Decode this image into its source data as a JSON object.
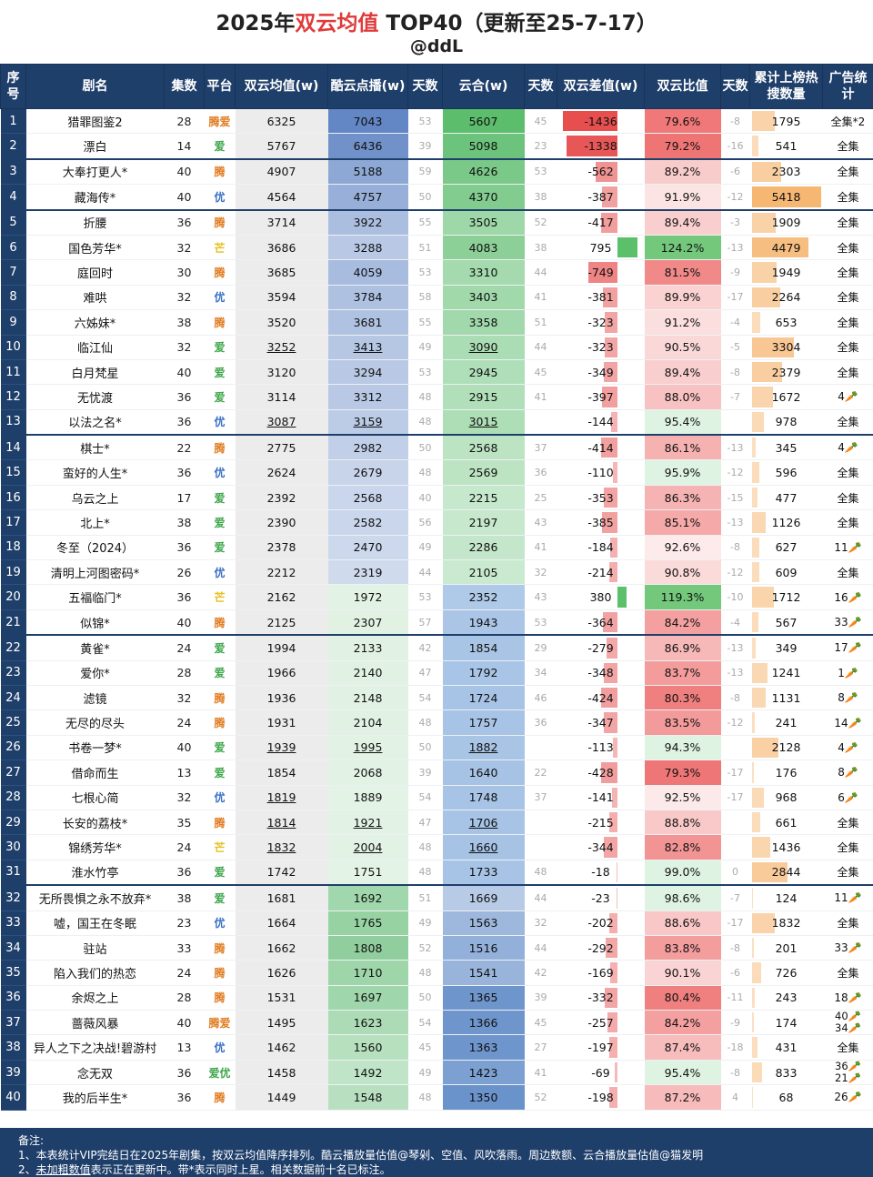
{
  "title_year": "2025年",
  "title_red": "双云均值",
  "title_rest": " TOP40（更新至25-7-17）",
  "subtitle": "@ddL",
  "headers": {
    "seq": "序号",
    "name": "剧名",
    "episodes": "集数",
    "platform": "平台",
    "avg": "双云均值(w)",
    "youku": "酷云点播(w)",
    "days1": "天数",
    "yunhe": "云合(w)",
    "days2": "天数",
    "diff": "双云差值(w)",
    "ratio": "双云比值",
    "days3": "天数",
    "hot": "累计上榜热搜数量",
    "ad": "广告统计"
  },
  "rows": [
    {
      "seq": "1",
      "name": "猎罪图鉴2",
      "ep": "28",
      "plat": "腾爱",
      "avg": "6325",
      "yk": "7043",
      "d1": "53",
      "yh": "5607",
      "d2": "45",
      "diff": "-1436",
      "ratio": "79.6%",
      "d3": "-8",
      "hot": "1795",
      "ad": "全集*2",
      "hotv": 1795,
      "ykv": 7043,
      "yhv": 5607,
      "diffv": -1436,
      "ratiov": 79.6
    },
    {
      "seq": "2",
      "name": "漂白",
      "ep": "14",
      "plat": "爱",
      "avg": "5767",
      "yk": "6436",
      "d1": "39",
      "yh": "5098",
      "d2": "23",
      "diff": "-1338",
      "ratio": "79.2%",
      "d3": "-16",
      "hot": "541",
      "ad": "全集",
      "hotv": 541,
      "ykv": 6436,
      "yhv": 5098,
      "diffv": -1338,
      "ratiov": 79.2
    },
    {
      "seq": "3",
      "name": "大奉打更人*",
      "ep": "40",
      "plat": "腾",
      "avg": "4907",
      "yk": "5188",
      "d1": "59",
      "yh": "4626",
      "d2": "53",
      "diff": "-562",
      "ratio": "89.2%",
      "d3": "-6",
      "hot": "2303",
      "ad": "全集",
      "hotv": 2303,
      "ykv": 5188,
      "yhv": 4626,
      "diffv": -562,
      "ratiov": 89.2
    },
    {
      "seq": "4",
      "name": "藏海传*",
      "ep": "40",
      "plat": "优",
      "avg": "4564",
      "yk": "4757",
      "d1": "50",
      "yh": "4370",
      "d2": "38",
      "diff": "-387",
      "ratio": "91.9%",
      "d3": "-12",
      "hot": "5418",
      "ad": "全集",
      "hotv": 5418,
      "ykv": 4757,
      "yhv": 4370,
      "diffv": -387,
      "ratiov": 91.9
    },
    {
      "seq": "5",
      "name": "折腰",
      "ep": "36",
      "plat": "腾",
      "avg": "3714",
      "yk": "3922",
      "d1": "55",
      "yh": "3505",
      "d2": "52",
      "diff": "-417",
      "ratio": "89.4%",
      "d3": "-3",
      "hot": "1909",
      "ad": "全集",
      "hotv": 1909,
      "ykv": 3922,
      "yhv": 3505,
      "diffv": -417,
      "ratiov": 89.4
    },
    {
      "seq": "6",
      "name": "国色芳华*",
      "ep": "32",
      "plat": "芒",
      "avg": "3686",
      "yk": "3288",
      "d1": "51",
      "yh": "4083",
      "d2": "38",
      "diff": "795",
      "ratio": "124.2%",
      "d3": "-13",
      "hot": "4479",
      "ad": "全集",
      "hotv": 4479,
      "ykv": 3288,
      "yhv": 4083,
      "diffv": 795,
      "ratiov": 124.2
    },
    {
      "seq": "7",
      "name": "庭回时",
      "ep": "30",
      "plat": "腾",
      "avg": "3685",
      "yk": "4059",
      "d1": "53",
      "yh": "3310",
      "d2": "44",
      "diff": "-749",
      "ratio": "81.5%",
      "d3": "-9",
      "hot": "1949",
      "ad": "全集",
      "hotv": 1949,
      "ykv": 4059,
      "yhv": 3310,
      "diffv": -749,
      "ratiov": 81.5
    },
    {
      "seq": "8",
      "name": "难哄",
      "ep": "32",
      "plat": "优",
      "avg": "3594",
      "yk": "3784",
      "d1": "58",
      "yh": "3403",
      "d2": "41",
      "diff": "-381",
      "ratio": "89.9%",
      "d3": "-17",
      "hot": "2264",
      "ad": "全集",
      "hotv": 2264,
      "ykv": 3784,
      "yhv": 3403,
      "diffv": -381,
      "ratiov": 89.9
    },
    {
      "seq": "9",
      "name": "六姊妹*",
      "ep": "38",
      "plat": "腾",
      "avg": "3520",
      "yk": "3681",
      "d1": "55",
      "yh": "3358",
      "d2": "51",
      "diff": "-323",
      "ratio": "91.2%",
      "d3": "-4",
      "hot": "653",
      "ad": "全集",
      "hotv": 653,
      "ykv": 3681,
      "yhv": 3358,
      "diffv": -323,
      "ratiov": 91.2
    },
    {
      "seq": "10",
      "name": "临江仙",
      "ep": "32",
      "plat": "爱",
      "avg": "3252",
      "yk": "3413",
      "d1": "49",
      "yh": "3090",
      "d2": "44",
      "diff": "-323",
      "ratio": "90.5%",
      "d3": "-5",
      "hot": "3304",
      "ad": "全集",
      "hotv": 3304,
      "ykv": 3413,
      "yhv": 3090,
      "diffv": -323,
      "ratiov": 90.5,
      "u": true
    },
    {
      "seq": "11",
      "name": "白月梵星",
      "ep": "40",
      "plat": "爱",
      "avg": "3120",
      "yk": "3294",
      "d1": "53",
      "yh": "2945",
      "d2": "45",
      "diff": "-349",
      "ratio": "89.4%",
      "d3": "-8",
      "hot": "2379",
      "ad": "全集",
      "hotv": 2379,
      "ykv": 3294,
      "yhv": 2945,
      "diffv": -349,
      "ratiov": 89.4
    },
    {
      "seq": "12",
      "name": "无忧渡",
      "ep": "36",
      "plat": "爱",
      "avg": "3114",
      "yk": "3312",
      "d1": "48",
      "yh": "2915",
      "d2": "41",
      "diff": "-397",
      "ratio": "88.0%",
      "d3": "-7",
      "hot": "1672",
      "ad": "4🥕",
      "hotv": 1672,
      "ykv": 3312,
      "yhv": 2915,
      "diffv": -397,
      "ratiov": 88.0
    },
    {
      "seq": "13",
      "name": "以法之名*",
      "ep": "36",
      "plat": "优",
      "avg": "3087",
      "yk": "3159",
      "d1": "48",
      "yh": "3015",
      "d2": "",
      "diff": "-144",
      "ratio": "95.4%",
      "d3": "",
      "hot": "978",
      "ad": "全集",
      "hotv": 978,
      "ykv": 3159,
      "yhv": 3015,
      "diffv": -144,
      "ratiov": 95.4,
      "u": true
    },
    {
      "seq": "14",
      "name": "棋士*",
      "ep": "22",
      "plat": "腾",
      "avg": "2775",
      "yk": "2982",
      "d1": "50",
      "yh": "2568",
      "d2": "37",
      "diff": "-414",
      "ratio": "86.1%",
      "d3": "-13",
      "hot": "345",
      "ad": "4🥕",
      "hotv": 345,
      "ykv": 2982,
      "yhv": 2568,
      "diffv": -414,
      "ratiov": 86.1
    },
    {
      "seq": "15",
      "name": "蛮好的人生*",
      "ep": "36",
      "plat": "优",
      "avg": "2624",
      "yk": "2679",
      "d1": "48",
      "yh": "2569",
      "d2": "36",
      "diff": "-110",
      "ratio": "95.9%",
      "d3": "-12",
      "hot": "596",
      "ad": "全集",
      "hotv": 596,
      "ykv": 2679,
      "yhv": 2569,
      "diffv": -110,
      "ratiov": 95.9
    },
    {
      "seq": "16",
      "name": "乌云之上",
      "ep": "17",
      "plat": "爱",
      "avg": "2392",
      "yk": "2568",
      "d1": "40",
      "yh": "2215",
      "d2": "25",
      "diff": "-353",
      "ratio": "86.3%",
      "d3": "-15",
      "hot": "477",
      "ad": "全集",
      "hotv": 477,
      "ykv": 2568,
      "yhv": 2215,
      "diffv": -353,
      "ratiov": 86.3
    },
    {
      "seq": "17",
      "name": "北上*",
      "ep": "38",
      "plat": "爱",
      "avg": "2390",
      "yk": "2582",
      "d1": "56",
      "yh": "2197",
      "d2": "43",
      "diff": "-385",
      "ratio": "85.1%",
      "d3": "-13",
      "hot": "1126",
      "ad": "全集",
      "hotv": 1126,
      "ykv": 2582,
      "yhv": 2197,
      "diffv": -385,
      "ratiov": 85.1
    },
    {
      "seq": "18",
      "name": "冬至（2024）",
      "ep": "36",
      "plat": "爱",
      "avg": "2378",
      "yk": "2470",
      "d1": "49",
      "yh": "2286",
      "d2": "41",
      "diff": "-184",
      "ratio": "92.6%",
      "d3": "-8",
      "hot": "627",
      "ad": "11🥕",
      "hotv": 627,
      "ykv": 2470,
      "yhv": 2286,
      "diffv": -184,
      "ratiov": 92.6
    },
    {
      "seq": "19",
      "name": "清明上河图密码*",
      "ep": "26",
      "plat": "优",
      "avg": "2212",
      "yk": "2319",
      "d1": "44",
      "yh": "2105",
      "d2": "32",
      "diff": "-214",
      "ratio": "90.8%",
      "d3": "-12",
      "hot": "609",
      "ad": "全集",
      "hotv": 609,
      "ykv": 2319,
      "yhv": 2105,
      "diffv": -214,
      "ratiov": 90.8
    },
    {
      "seq": "20",
      "name": "五福临门*",
      "ep": "36",
      "plat": "芒",
      "avg": "2162",
      "yk": "1972",
      "d1": "53",
      "yh": "2352",
      "d2": "43",
      "diff": "380",
      "ratio": "119.3%",
      "d3": "-10",
      "hot": "1712",
      "ad": "16🥕",
      "hotv": 1712,
      "ykv": 1972,
      "yhv": 2352,
      "diffv": 380,
      "ratiov": 119.3
    },
    {
      "seq": "21",
      "name": "似锦*",
      "ep": "40",
      "plat": "腾",
      "avg": "2125",
      "yk": "2307",
      "d1": "57",
      "yh": "1943",
      "d2": "53",
      "diff": "-364",
      "ratio": "84.2%",
      "d3": "-4",
      "hot": "567",
      "ad": "33🥕",
      "hotv": 567,
      "ykv": 2307,
      "yhv": 1943,
      "diffv": -364,
      "ratiov": 84.2
    },
    {
      "seq": "22",
      "name": "黄雀*",
      "ep": "24",
      "plat": "爱",
      "avg": "1994",
      "yk": "2133",
      "d1": "42",
      "yh": "1854",
      "d2": "29",
      "diff": "-279",
      "ratio": "86.9%",
      "d3": "-13",
      "hot": "349",
      "ad": "17🥕",
      "hotv": 349,
      "ykv": 2133,
      "yhv": 1854,
      "diffv": -279,
      "ratiov": 86.9
    },
    {
      "seq": "23",
      "name": "爱你*",
      "ep": "28",
      "plat": "爱",
      "avg": "1966",
      "yk": "2140",
      "d1": "47",
      "yh": "1792",
      "d2": "34",
      "diff": "-348",
      "ratio": "83.7%",
      "d3": "-13",
      "hot": "1241",
      "ad": "1🥕",
      "hotv": 1241,
      "ykv": 2140,
      "yhv": 1792,
      "diffv": -348,
      "ratiov": 83.7
    },
    {
      "seq": "24",
      "name": "滤镜",
      "ep": "32",
      "plat": "腾",
      "avg": "1936",
      "yk": "2148",
      "d1": "54",
      "yh": "1724",
      "d2": "46",
      "diff": "-424",
      "ratio": "80.3%",
      "d3": "-8",
      "hot": "1131",
      "ad": "8🥕",
      "hotv": 1131,
      "ykv": 2148,
      "yhv": 1724,
      "diffv": -424,
      "ratiov": 80.3
    },
    {
      "seq": "25",
      "name": "无尽的尽头",
      "ep": "24",
      "plat": "腾",
      "avg": "1931",
      "yk": "2104",
      "d1": "48",
      "yh": "1757",
      "d2": "36",
      "diff": "-347",
      "ratio": "83.5%",
      "d3": "-12",
      "hot": "241",
      "ad": "14🥕",
      "hotv": 241,
      "ykv": 2104,
      "yhv": 1757,
      "diffv": -347,
      "ratiov": 83.5
    },
    {
      "seq": "26",
      "name": "书卷一梦*",
      "ep": "40",
      "plat": "爱",
      "avg": "1939",
      "yk": "1995",
      "d1": "50",
      "yh": "1882",
      "d2": "",
      "diff": "-113",
      "ratio": "94.3%",
      "d3": "",
      "hot": "2128",
      "ad": "4🥕",
      "hotv": 2128,
      "ykv": 1995,
      "yhv": 1882,
      "diffv": -113,
      "ratiov": 94.3,
      "u": true
    },
    {
      "seq": "27",
      "name": "借命而生",
      "ep": "13",
      "plat": "爱",
      "avg": "1854",
      "yk": "2068",
      "d1": "39",
      "yh": "1640",
      "d2": "22",
      "diff": "-428",
      "ratio": "79.3%",
      "d3": "-17",
      "hot": "176",
      "ad": "8🥕",
      "hotv": 176,
      "ykv": 2068,
      "yhv": 1640,
      "diffv": -428,
      "ratiov": 79.3
    },
    {
      "seq": "28",
      "name": "七根心简",
      "ep": "32",
      "plat": "优",
      "avg": "1819",
      "yk": "1889",
      "d1": "54",
      "yh": "1748",
      "d2": "37",
      "diff": "-141",
      "ratio": "92.5%",
      "d3": "-17",
      "hot": "968",
      "ad": "6🥕",
      "hotv": 968,
      "ykv": 1889,
      "yhv": 1748,
      "diffv": -141,
      "ratiov": 92.5,
      "u2": true
    },
    {
      "seq": "29",
      "name": "长安的荔枝*",
      "ep": "35",
      "plat": "腾",
      "avg": "1814",
      "yk": "1921",
      "d1": "47",
      "yh": "1706",
      "d2": "",
      "diff": "-215",
      "ratio": "88.8%",
      "d3": "",
      "hot": "661",
      "ad": "全集",
      "hotv": 661,
      "ykv": 1921,
      "yhv": 1706,
      "diffv": -215,
      "ratiov": 88.8,
      "u": true
    },
    {
      "seq": "30",
      "name": "锦绣芳华*",
      "ep": "24",
      "plat": "芒",
      "avg": "1832",
      "yk": "2004",
      "d1": "48",
      "yh": "1660",
      "d2": "",
      "diff": "-344",
      "ratio": "82.8%",
      "d3": "",
      "hot": "1436",
      "ad": "全集",
      "hotv": 1436,
      "ykv": 2004,
      "yhv": 1660,
      "diffv": -344,
      "ratiov": 82.8,
      "u": true
    },
    {
      "seq": "31",
      "name": "淮水竹亭",
      "ep": "36",
      "plat": "爱",
      "avg": "1742",
      "yk": "1751",
      "d1": "48",
      "yh": "1733",
      "d2": "48",
      "diff": "-18",
      "ratio": "99.0%",
      "d3": "0",
      "hot": "2844",
      "ad": "全集",
      "hotv": 2844,
      "ykv": 1751,
      "yhv": 1733,
      "diffv": -18,
      "ratiov": 99.0
    },
    {
      "seq": "32",
      "name": "无所畏惧之永不放弃*",
      "ep": "38",
      "plat": "爱",
      "avg": "1681",
      "yk": "1692",
      "d1": "51",
      "yh": "1669",
      "d2": "44",
      "diff": "-23",
      "ratio": "98.6%",
      "d3": "-7",
      "hot": "124",
      "ad": "11🥕",
      "hotv": 124,
      "ykv": 1692,
      "yhv": 1669,
      "diffv": -23,
      "ratiov": 98.6
    },
    {
      "seq": "33",
      "name": "嘘，国王在冬眠",
      "ep": "23",
      "plat": "优",
      "avg": "1664",
      "yk": "1765",
      "d1": "49",
      "yh": "1563",
      "d2": "32",
      "diff": "-202",
      "ratio": "88.6%",
      "d3": "-17",
      "hot": "1832",
      "ad": "全集",
      "hotv": 1832,
      "ykv": 1765,
      "yhv": 1563,
      "diffv": -202,
      "ratiov": 88.6
    },
    {
      "seq": "34",
      "name": "驻站",
      "ep": "33",
      "plat": "腾",
      "avg": "1662",
      "yk": "1808",
      "d1": "52",
      "yh": "1516",
      "d2": "44",
      "diff": "-292",
      "ratio": "83.8%",
      "d3": "-8",
      "hot": "201",
      "ad": "33🥕",
      "hotv": 201,
      "ykv": 1808,
      "yhv": 1516,
      "diffv": -292,
      "ratiov": 83.8
    },
    {
      "seq": "35",
      "name": "陷入我们的热恋",
      "ep": "24",
      "plat": "腾",
      "avg": "1626",
      "yk": "1710",
      "d1": "48",
      "yh": "1541",
      "d2": "42",
      "diff": "-169",
      "ratio": "90.1%",
      "d3": "-6",
      "hot": "726",
      "ad": "全集",
      "hotv": 726,
      "ykv": 1710,
      "yhv": 1541,
      "diffv": -169,
      "ratiov": 90.1
    },
    {
      "seq": "36",
      "name": "余烬之上",
      "ep": "28",
      "plat": "腾",
      "avg": "1531",
      "yk": "1697",
      "d1": "50",
      "yh": "1365",
      "d2": "39",
      "diff": "-332",
      "ratio": "80.4%",
      "d3": "-11",
      "hot": "243",
      "ad": "18🥕",
      "hotv": 243,
      "ykv": 1697,
      "yhv": 1365,
      "diffv": -332,
      "ratiov": 80.4
    },
    {
      "seq": "37",
      "name": "蔷薇风暴",
      "ep": "40",
      "plat": "腾爱",
      "avg": "1495",
      "yk": "1623",
      "d1": "54",
      "yh": "1366",
      "d2": "45",
      "diff": "-257",
      "ratio": "84.2%",
      "d3": "-9",
      "hot": "174",
      "ad": "40🥕|34🥕",
      "hotv": 174,
      "ykv": 1623,
      "yhv": 1366,
      "diffv": -257,
      "ratiov": 84.2
    },
    {
      "seq": "38",
      "name": "异人之下之决战!碧游村",
      "ep": "13",
      "plat": "优",
      "avg": "1462",
      "yk": "1560",
      "d1": "45",
      "yh": "1363",
      "d2": "27",
      "diff": "-197",
      "ratio": "87.4%",
      "d3": "-18",
      "hot": "431",
      "ad": "全集",
      "hotv": 431,
      "ykv": 1560,
      "yhv": 1363,
      "diffv": -197,
      "ratiov": 87.4
    },
    {
      "seq": "39",
      "name": "念无双",
      "ep": "36",
      "plat": "爱优",
      "avg": "1458",
      "yk": "1492",
      "d1": "49",
      "yh": "1423",
      "d2": "41",
      "diff": "-69",
      "ratio": "95.4%",
      "d3": "-8",
      "hot": "833",
      "ad": "36🥕|21🥕",
      "hotv": 833,
      "ykv": 1492,
      "yhv": 1423,
      "diffv": -69,
      "ratiov": 95.4
    },
    {
      "seq": "40",
      "name": "我的后半生*",
      "ep": "36",
      "plat": "腾",
      "avg": "1449",
      "yk": "1548",
      "d1": "48",
      "yh": "1350",
      "d2": "52",
      "diff": "-198",
      "ratio": "87.2%",
      "d3": "4",
      "hot": "68",
      "ad": "26🥕",
      "hotv": 68,
      "ykv": 1548,
      "yhv": 1350,
      "diffv": -198,
      "ratiov": 87.2
    }
  ],
  "notes": {
    "head": "备注:",
    "line1": "1、本表统计VIP完结日在2025年剧集，按双云均值降序排列。酷云播放量估值@琴剁、空值、风吹落雨。周边数额、云合播放量估值@猫发明",
    "line2_prefix": "2、",
    "line2_u": "未加粗数值",
    "line2_rest": "表示正在更新中。带*表示同时上星。相关数据前十名已标注。"
  },
  "colors": {
    "header_bg": "#1f3f6b",
    "title_red": "#e03a3a",
    "plat_teng": "#e07b1f",
    "plat_ai": "#3da64a",
    "plat_you": "#3a6fc4",
    "plat_mang": "#e6c020"
  }
}
